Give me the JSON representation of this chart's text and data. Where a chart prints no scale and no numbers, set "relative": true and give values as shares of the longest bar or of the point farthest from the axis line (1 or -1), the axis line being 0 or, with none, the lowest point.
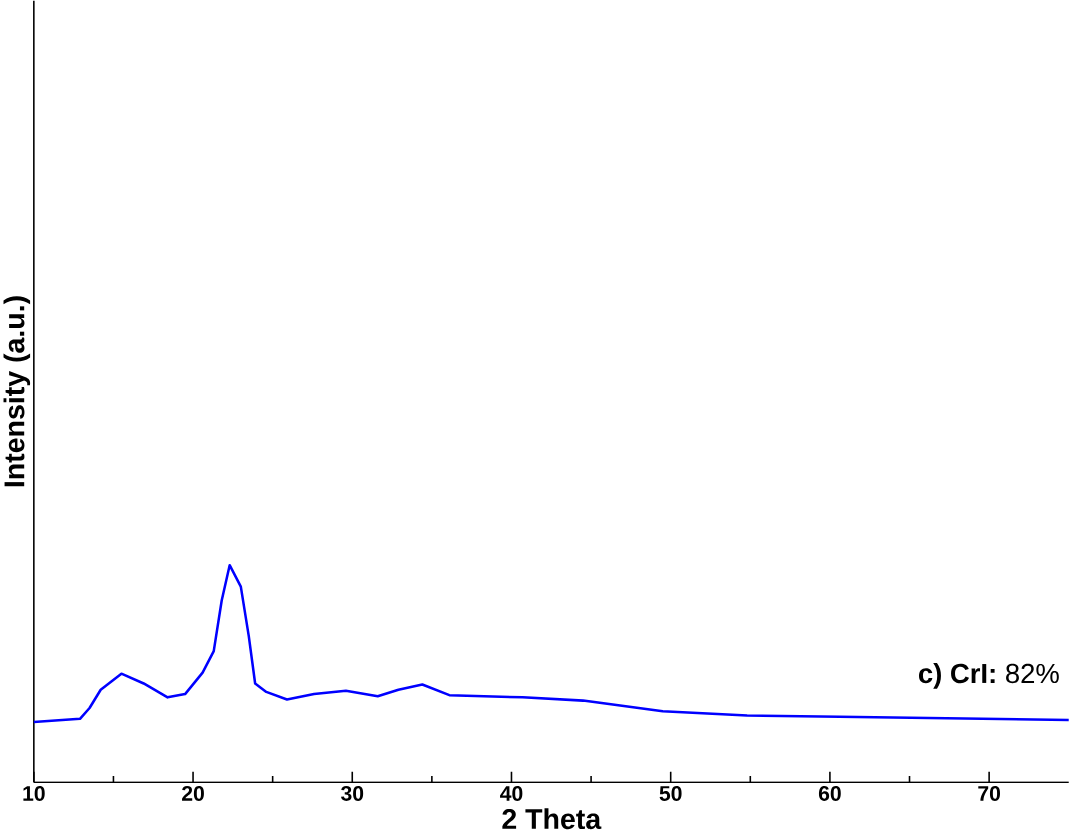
{
  "chart_data": {
    "type": "line",
    "relative": true,
    "xlabel": "2 Theta",
    "ylabel": "Intensity (a.u.)",
    "xlim": [
      10,
      75
    ],
    "xticks": [
      10,
      20,
      30,
      40,
      50,
      60,
      70
    ],
    "annotations": [
      "**c) CrI:** 82%"
    ],
    "series": [
      {
        "color": "#0000ff",
        "x": [
          10,
          12.9,
          13.5,
          14.2,
          15.5,
          16.9,
          18.4,
          19.5,
          20.6,
          21.3,
          21.8,
          22.3,
          23.0,
          23.5,
          23.9,
          24.6,
          25.9,
          27.6,
          29.6,
          31.6,
          32.9,
          34.4,
          36.1,
          40.7,
          44.5,
          49.5,
          54.8,
          60.6,
          75
        ],
        "values": [
          0.277,
          0.292,
          0.342,
          0.426,
          0.5,
          0.455,
          0.391,
          0.406,
          0.505,
          0.604,
          0.837,
          1,
          0.901,
          0.673,
          0.455,
          0.416,
          0.381,
          0.406,
          0.421,
          0.396,
          0.426,
          0.45,
          0.401,
          0.391,
          0.376,
          0.327,
          0.307,
          0.302,
          0.287
        ]
      }
    ]
  }
}
